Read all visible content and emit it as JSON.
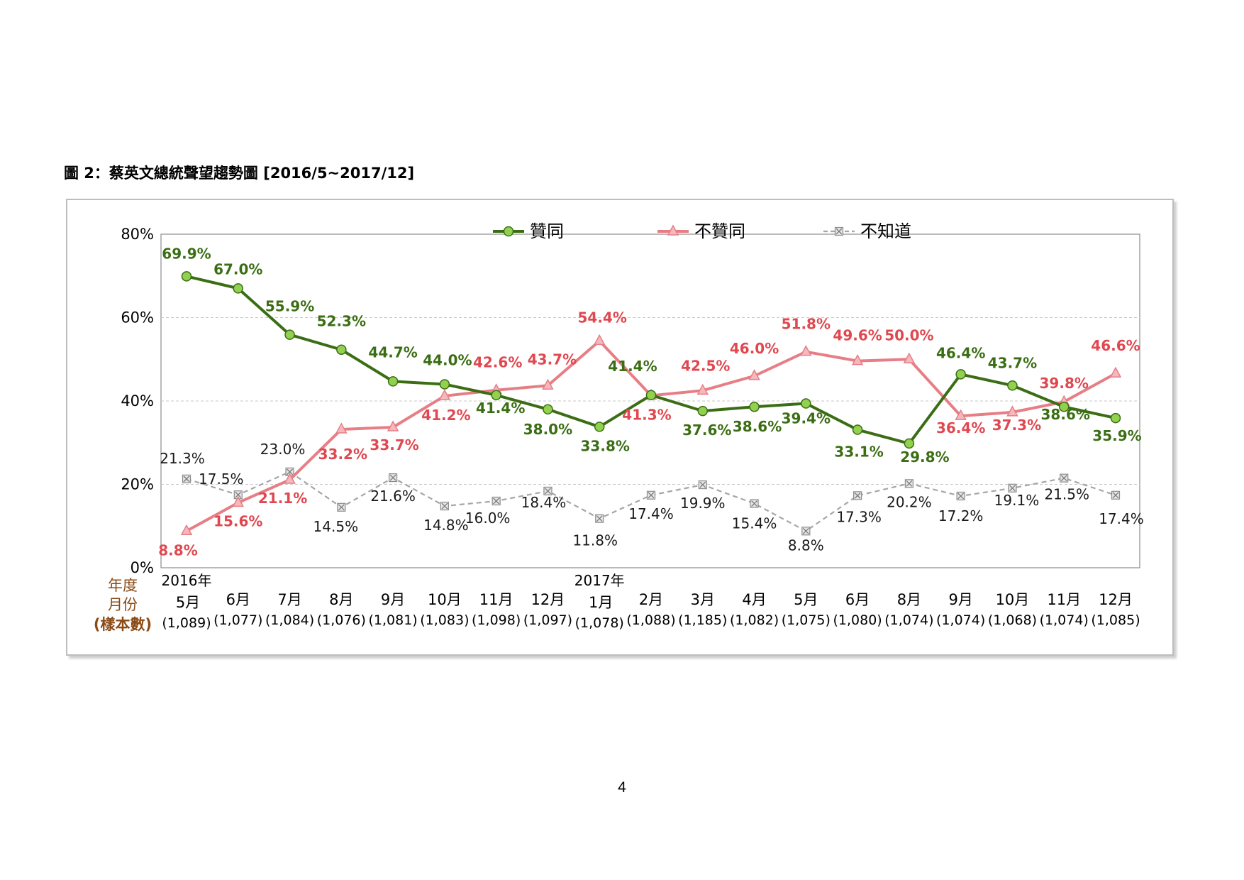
{
  "figure_title": "圖 2：蔡英文總統聲望趨勢圖  [2016/5~2017/12]",
  "page_number": "4",
  "chart_data": {
    "type": "line",
    "legend_position": "top-center",
    "grid": true,
    "ylim": [
      0,
      80
    ],
    "y_ticks": [
      "0%",
      "20%",
      "40%",
      "60%",
      "80%"
    ],
    "row_labels": [
      "年度",
      "月份",
      "(樣本數)"
    ],
    "year_labels": [
      {
        "index": 0,
        "text": "2016年"
      },
      {
        "index": 8,
        "text": "2017年"
      }
    ],
    "categories": [
      "5月",
      "6月",
      "7月",
      "8月",
      "9月",
      "10月",
      "11月",
      "12月",
      "1月",
      "2月",
      "3月",
      "4月",
      "5月",
      "6月",
      "8月",
      "9月",
      "10月",
      "11月",
      "12月"
    ],
    "sample_sizes": [
      "(1,089)",
      "(1,077)",
      "(1,084)",
      "(1,076)",
      "(1,081)",
      "(1,083)",
      "(1,098)",
      "(1,097)",
      "(1,078)",
      "(1,088)",
      "(1,185)",
      "(1,082)",
      "(1,075)",
      "(1,080)",
      "(1,074)",
      "(1,074)",
      "(1,068)",
      "(1,074)",
      "(1,085)"
    ],
    "series": [
      {
        "name": "贊同",
        "color": "#3b6e14",
        "marker": "circle",
        "marker_color": "#92d050",
        "values": [
          69.9,
          67.0,
          55.9,
          52.3,
          44.7,
          44.0,
          41.4,
          38.0,
          33.8,
          41.4,
          37.6,
          38.6,
          39.4,
          33.1,
          29.8,
          46.4,
          43.7,
          38.6,
          35.9
        ],
        "labels": [
          "69.9%",
          "67.0%",
          "55.9%",
          "52.3%",
          "44.7%",
          "44.0%",
          "41.4%",
          "38.0%",
          "33.8%",
          "41.4%",
          "37.6%",
          "38.6%",
          "39.4%",
          "33.1%",
          "29.8%",
          "46.4%",
          "43.7%",
          "38.6%",
          "35.9%"
        ]
      },
      {
        "name": "不贊同",
        "color": "#e77e85",
        "marker": "triangle",
        "marker_color": "#f4b8bd",
        "label_color": "#e04850",
        "values": [
          8.8,
          15.6,
          21.1,
          33.2,
          33.7,
          41.2,
          42.6,
          43.7,
          54.4,
          41.3,
          42.5,
          46.0,
          51.8,
          49.6,
          50.0,
          36.4,
          37.3,
          39.8,
          46.6
        ],
        "labels": [
          "8.8%",
          "15.6%",
          "21.1%",
          "33.2%",
          "33.7%",
          "41.2%",
          "42.6%",
          "43.7%",
          "54.4%",
          "41.3%",
          "42.5%",
          "46.0%",
          "51.8%",
          "49.6%",
          "50.0%",
          "36.4%",
          "37.3%",
          "39.8%",
          "46.6%"
        ]
      },
      {
        "name": "不知道",
        "color": "#a6a6a6",
        "marker": "x-square",
        "marker_color": "#bfbfbf",
        "label_color": "#1a1a1a",
        "dashed": true,
        "values": [
          21.3,
          17.5,
          23.0,
          14.5,
          21.6,
          14.8,
          16.0,
          18.4,
          11.8,
          17.4,
          19.9,
          15.4,
          8.8,
          17.3,
          20.2,
          17.2,
          19.1,
          21.5,
          17.4
        ],
        "labels": [
          "21.3%",
          "17.5%",
          "23.0%",
          "14.5%",
          "21.6%",
          "14.8%",
          "16.0%",
          "18.4%",
          "11.8%",
          "17.4%",
          "19.9%",
          "15.4%",
          "8.8%",
          "17.3%",
          "20.2%",
          "17.2%",
          "19.1%",
          "21.5%",
          "17.4%"
        ]
      }
    ]
  }
}
